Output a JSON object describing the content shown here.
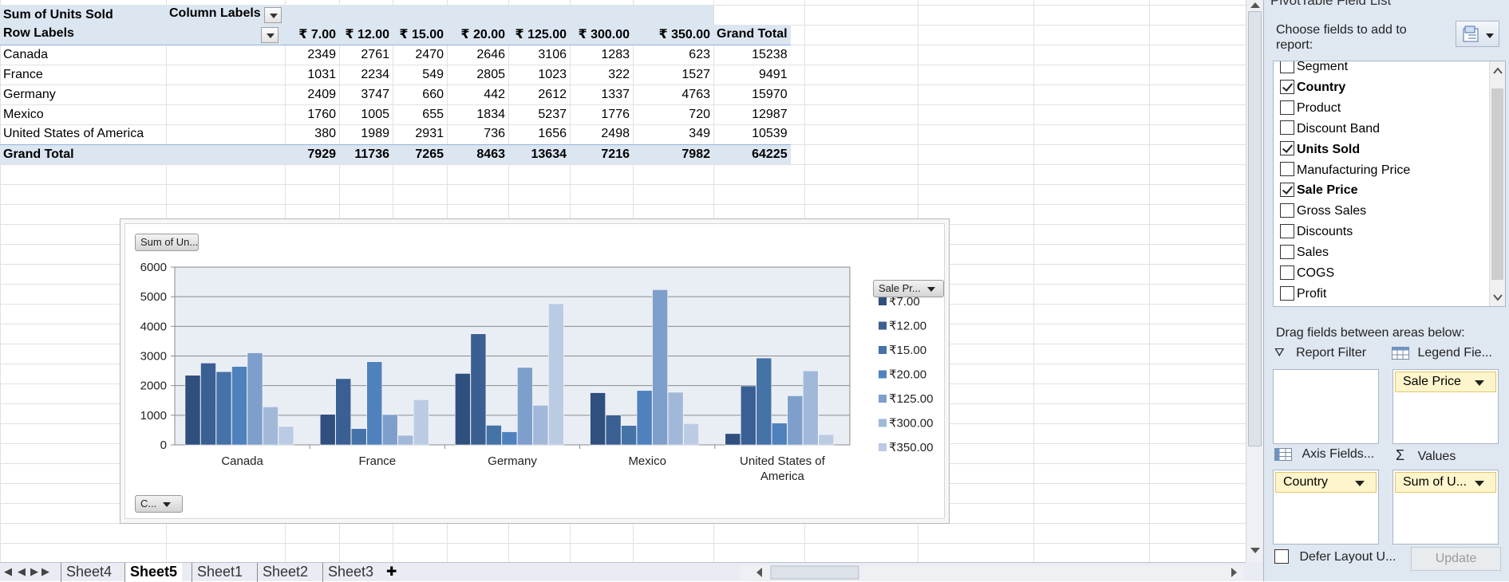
{
  "pivot": {
    "corner_label": "Sum of Units Sold",
    "column_labels": "Column Labels",
    "row_labels": "Row Labels",
    "columns": [
      "₹ 7.00",
      "₹ 12.00",
      "₹ 15.00",
      "₹ 20.00",
      "₹ 125.00",
      "₹ 300.00",
      "₹ 350.00",
      "Grand Total"
    ],
    "rows": [
      {
        "label": "Canada",
        "values": [
          "2349",
          "2761",
          "2470",
          "2646",
          "3106",
          "1283",
          "623",
          "15238"
        ]
      },
      {
        "label": "France",
        "values": [
          "1031",
          "2234",
          "549",
          "2805",
          "1023",
          "322",
          "1527",
          "9491"
        ]
      },
      {
        "label": "Germany",
        "values": [
          "2409",
          "3747",
          "660",
          "442",
          "2612",
          "1337",
          "4763",
          "15970"
        ]
      },
      {
        "label": "Mexico",
        "values": [
          "1760",
          "1005",
          "655",
          "1834",
          "5237",
          "1776",
          "720",
          "12987"
        ]
      },
      {
        "label": "United States of America",
        "values": [
          "380",
          "1989",
          "2931",
          "736",
          "1656",
          "2498",
          "349",
          "10539"
        ]
      }
    ],
    "grand_total": {
      "label": "Grand Total",
      "values": [
        "7929",
        "11736",
        "7265",
        "8463",
        "13634",
        "7216",
        "7982",
        "64225"
      ]
    }
  },
  "chart": {
    "values_button": "Sum of Un...",
    "legend_button": "Sale Pr...",
    "axis_button": "C..."
  },
  "chart_data": {
    "type": "bar",
    "categories": [
      "Canada",
      "France",
      "Germany",
      "Mexico",
      "United States of America"
    ],
    "series": [
      {
        "name": "₹ 7.00",
        "values": [
          2349,
          1031,
          2409,
          1760,
          380
        ],
        "color": "#2f4f7f"
      },
      {
        "name": "₹ 12.00",
        "values": [
          2761,
          2234,
          3747,
          1005,
          1989
        ],
        "color": "#3a5f93"
      },
      {
        "name": "₹ 15.00",
        "values": [
          2470,
          549,
          660,
          655,
          2931
        ],
        "color": "#4572a7"
      },
      {
        "name": "₹ 20.00",
        "values": [
          2646,
          2805,
          442,
          1834,
          736
        ],
        "color": "#4f81bd"
      },
      {
        "name": "₹ 125.00",
        "values": [
          3106,
          1023,
          2612,
          5237,
          1656
        ],
        "color": "#7e9fcb"
      },
      {
        "name": "₹ 300.00",
        "values": [
          1283,
          322,
          1337,
          1776,
          2498
        ],
        "color": "#a1b8d9"
      },
      {
        "name": "₹ 350.00",
        "values": [
          623,
          1527,
          4763,
          720,
          349
        ],
        "color": "#bccbe4"
      }
    ],
    "yticks": [
      "0",
      "1000",
      "2000",
      "3000",
      "4000",
      "5000",
      "6000"
    ],
    "ylim": [
      0,
      6000
    ],
    "grid": true,
    "legend": "right"
  },
  "sheet_tabs": [
    "Sheet4",
    "Sheet5",
    "Sheet1",
    "Sheet2",
    "Sheet3"
  ],
  "active_tab": "Sheet5",
  "field_list": {
    "title": "PivotTable Field List",
    "choose_label": "Choose fields to add to report:",
    "fields": [
      {
        "label": "Segment",
        "checked": false
      },
      {
        "label": "Country",
        "checked": true
      },
      {
        "label": "Product",
        "checked": false
      },
      {
        "label": "Discount Band",
        "checked": false
      },
      {
        "label": "Units Sold",
        "checked": true
      },
      {
        "label": "Manufacturing Price",
        "checked": false
      },
      {
        "label": "Sale Price",
        "checked": true
      },
      {
        "label": "Gross Sales",
        "checked": false
      },
      {
        "label": "Discounts",
        "checked": false
      },
      {
        "label": "Sales",
        "checked": false
      },
      {
        "label": "COGS",
        "checked": false
      },
      {
        "label": "Profit",
        "checked": false
      }
    ],
    "drag_label": "Drag fields between areas below:",
    "areas": {
      "report_filter": "Report Filter",
      "legend_fields": "Legend Fie...",
      "axis_fields": "Axis Fields...",
      "values": "Values",
      "legend_item": "Sale Price",
      "axis_item": "Country",
      "values_item": "Sum of U..."
    },
    "defer_label": "Defer Layout U...",
    "update_label": "Update"
  }
}
